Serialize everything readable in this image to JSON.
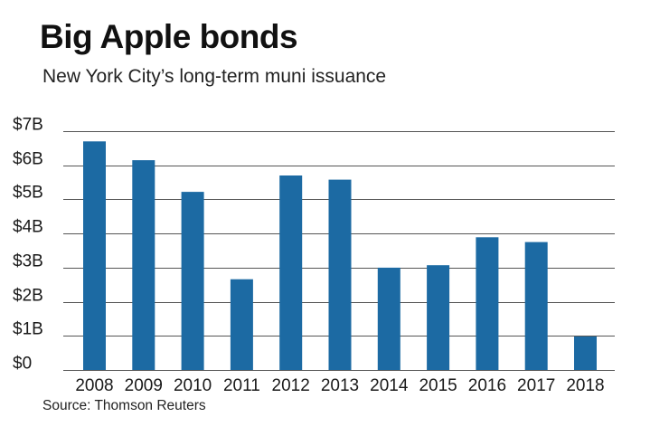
{
  "title": "Big Apple bonds",
  "subtitle": "New York City’s long-term muni issuance",
  "source": "Source: Thomson Reuters",
  "colors": {
    "bar": "#1c6aa3",
    "grid": "#555555",
    "text": "#1a1a1a"
  },
  "chart_data": {
    "type": "bar",
    "title": "Big Apple bonds",
    "subtitle": "New York City’s long-term muni issuance",
    "xlabel": "",
    "ylabel": "",
    "categories": [
      "2008",
      "2009",
      "2010",
      "2011",
      "2012",
      "2013",
      "2014",
      "2015",
      "2016",
      "2017",
      "2018"
    ],
    "values": [
      6.7,
      6.15,
      5.22,
      2.66,
      5.7,
      5.58,
      3.0,
      3.07,
      3.89,
      3.75,
      0.98
    ],
    "units": "billions of dollars",
    "ylim": [
      0,
      7
    ],
    "yticks": [
      0,
      1,
      2,
      3,
      4,
      5,
      6,
      7
    ],
    "ytick_labels": [
      "$0",
      "$1B",
      "$2B",
      "$3B",
      "$4B",
      "$5B",
      "$6B",
      "$7B"
    ],
    "grid": true,
    "legend": "none"
  }
}
